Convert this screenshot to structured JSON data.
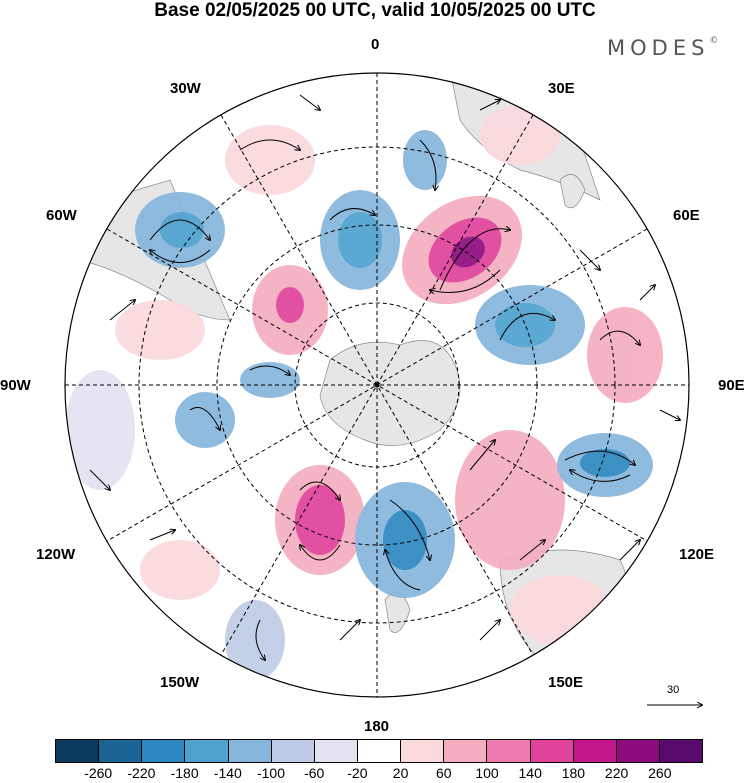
{
  "title": "Base 02/05/2025 00 UTC, valid 10/05/2025 00 UTC",
  "brand": {
    "name": "MODES",
    "mark": "©"
  },
  "longitude_labels": {
    "top": "0",
    "top_right": "30E",
    "right_upper": "60E",
    "right": "90E",
    "right_lower": "120E",
    "bottom_right": "150E",
    "bottom": "180",
    "bottom_left": "150W",
    "left_lower": "120W",
    "left": "90W",
    "left_upper": "60W",
    "top_left": "30W"
  },
  "reference_vector": {
    "label": "30"
  },
  "colorbar": {
    "colors": [
      "#0d3b5e",
      "#1b6596",
      "#2d87c0",
      "#4ea2d0",
      "#86b6dc",
      "#bfcbe6",
      "#e2e2f1",
      "#ffffff",
      "#fadadd",
      "#f5aec0",
      "#ee7ab0",
      "#e0439a",
      "#c5178d",
      "#8e0b7d",
      "#5a0a6e"
    ],
    "ticks": [
      "-260",
      "-220",
      "-180",
      "-140",
      "-100",
      "-60",
      "-20",
      "20",
      "60",
      "100",
      "140",
      "180",
      "220",
      "260"
    ]
  }
}
